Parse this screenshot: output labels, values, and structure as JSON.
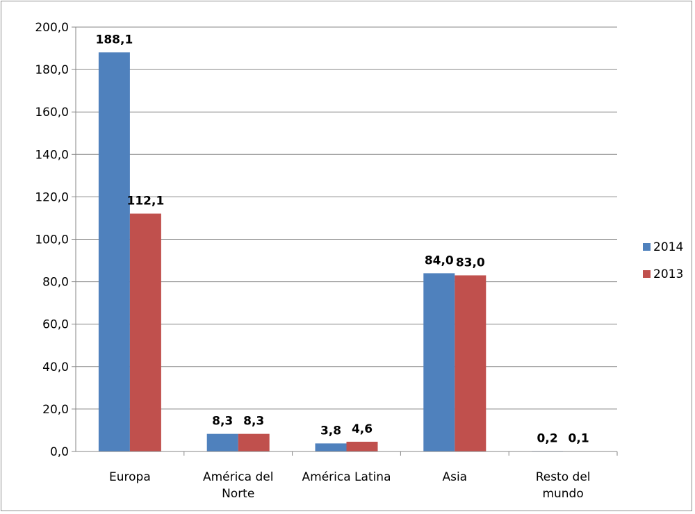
{
  "chart_data": {
    "type": "bar",
    "categories": [
      [
        "Europa"
      ],
      [
        "América del",
        "Norte"
      ],
      [
        "América Latina"
      ],
      [
        "Asia"
      ],
      [
        "Resto del",
        "mundo"
      ]
    ],
    "series": [
      {
        "name": "2014",
        "color": "#4f81bd",
        "values": [
          188.1,
          8.3,
          3.8,
          84.0,
          0.2
        ],
        "labels": [
          "188,1",
          "8,3",
          "3,8",
          "84,0",
          "0,2"
        ]
      },
      {
        "name": "2013",
        "color": "#c0504d",
        "values": [
          112.1,
          8.3,
          4.6,
          83.0,
          0.1
        ],
        "labels": [
          "112,1",
          "8,3",
          "4,6",
          "83,0",
          "0,1"
        ]
      }
    ],
    "ylim": [
      0,
      200
    ],
    "yticks": [
      0,
      20,
      40,
      60,
      80,
      100,
      120,
      140,
      160,
      180,
      200
    ],
    "ytick_labels": [
      "0,0",
      "20,0",
      "40,0",
      "60,0",
      "80,0",
      "100,0",
      "120,0",
      "140,0",
      "160,0",
      "180,0",
      "200,0"
    ],
    "grid": true,
    "legend_position": "right",
    "title": "",
    "xlabel": "",
    "ylabel": ""
  }
}
